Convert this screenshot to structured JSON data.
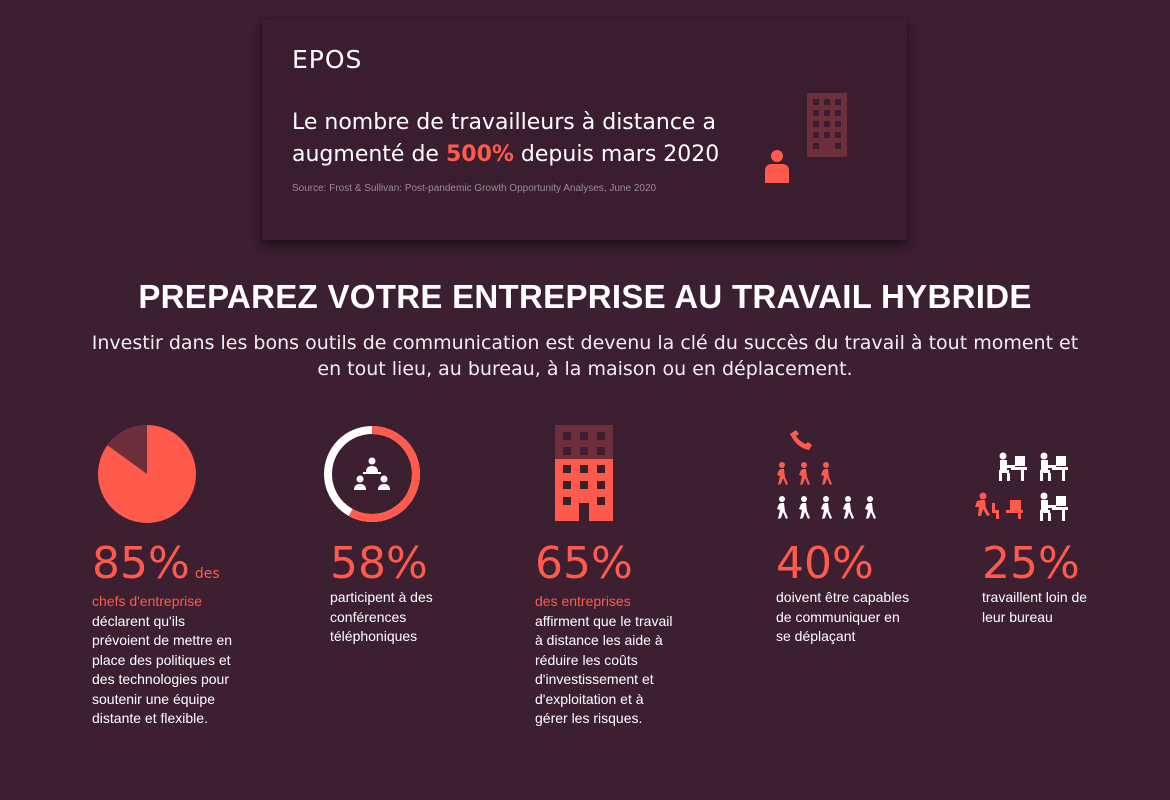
{
  "header": {
    "logo": "EPOS",
    "headline_before": "Le nombre de travailleurs à distance a augmenté de ",
    "headline_accent": "500%",
    "headline_after": " depuis mars 2020",
    "source": "Source: Frost & Sullivan: Post-pandemic Growth Opportunity Analyses, June 2020"
  },
  "title": "PREPAREZ VOTRE ENTREPRISE AU TRAVAIL HYBRIDE",
  "subtitle": "Investir dans les bons outils de communication est devenu la clé du succès du travail à tout moment et en tout lieu, au bureau, à la maison ou en déplacement.",
  "colors": {
    "background": "#3c1f30",
    "accent": "#ff5a4c",
    "muted": "#6e2f3c"
  },
  "stats": [
    {
      "value": "85%",
      "inline": "des",
      "lead": "chefs d'entreprise",
      "text": "déclarent qu'ils prévoient de mettre en place des politiques et des technologies pour soutenir une équipe distante et flexible.",
      "icon": "pie-chart-icon",
      "fraction": 0.85
    },
    {
      "value": "58%",
      "lead": "",
      "text": "participent à des conférences téléphoniques",
      "icon": "conference-ring-icon",
      "fraction": 0.58
    },
    {
      "value": "65%",
      "lead": "des entreprises",
      "text": "affirment que le travail à distance les aide à réduire les coûts d'investissement et d'exploitation et à gérer les risques.",
      "icon": "building-icon",
      "fraction": 0.65
    },
    {
      "value": "40%",
      "lead": "",
      "text": "doivent être capables de communiquer en se déplaçant",
      "icon": "walking-people-icon",
      "fraction": 0.4
    },
    {
      "value": "25%",
      "lead": "",
      "text": "travaillent loin de leur bureau",
      "icon": "desk-workers-icon",
      "fraction": 0.25
    }
  ]
}
